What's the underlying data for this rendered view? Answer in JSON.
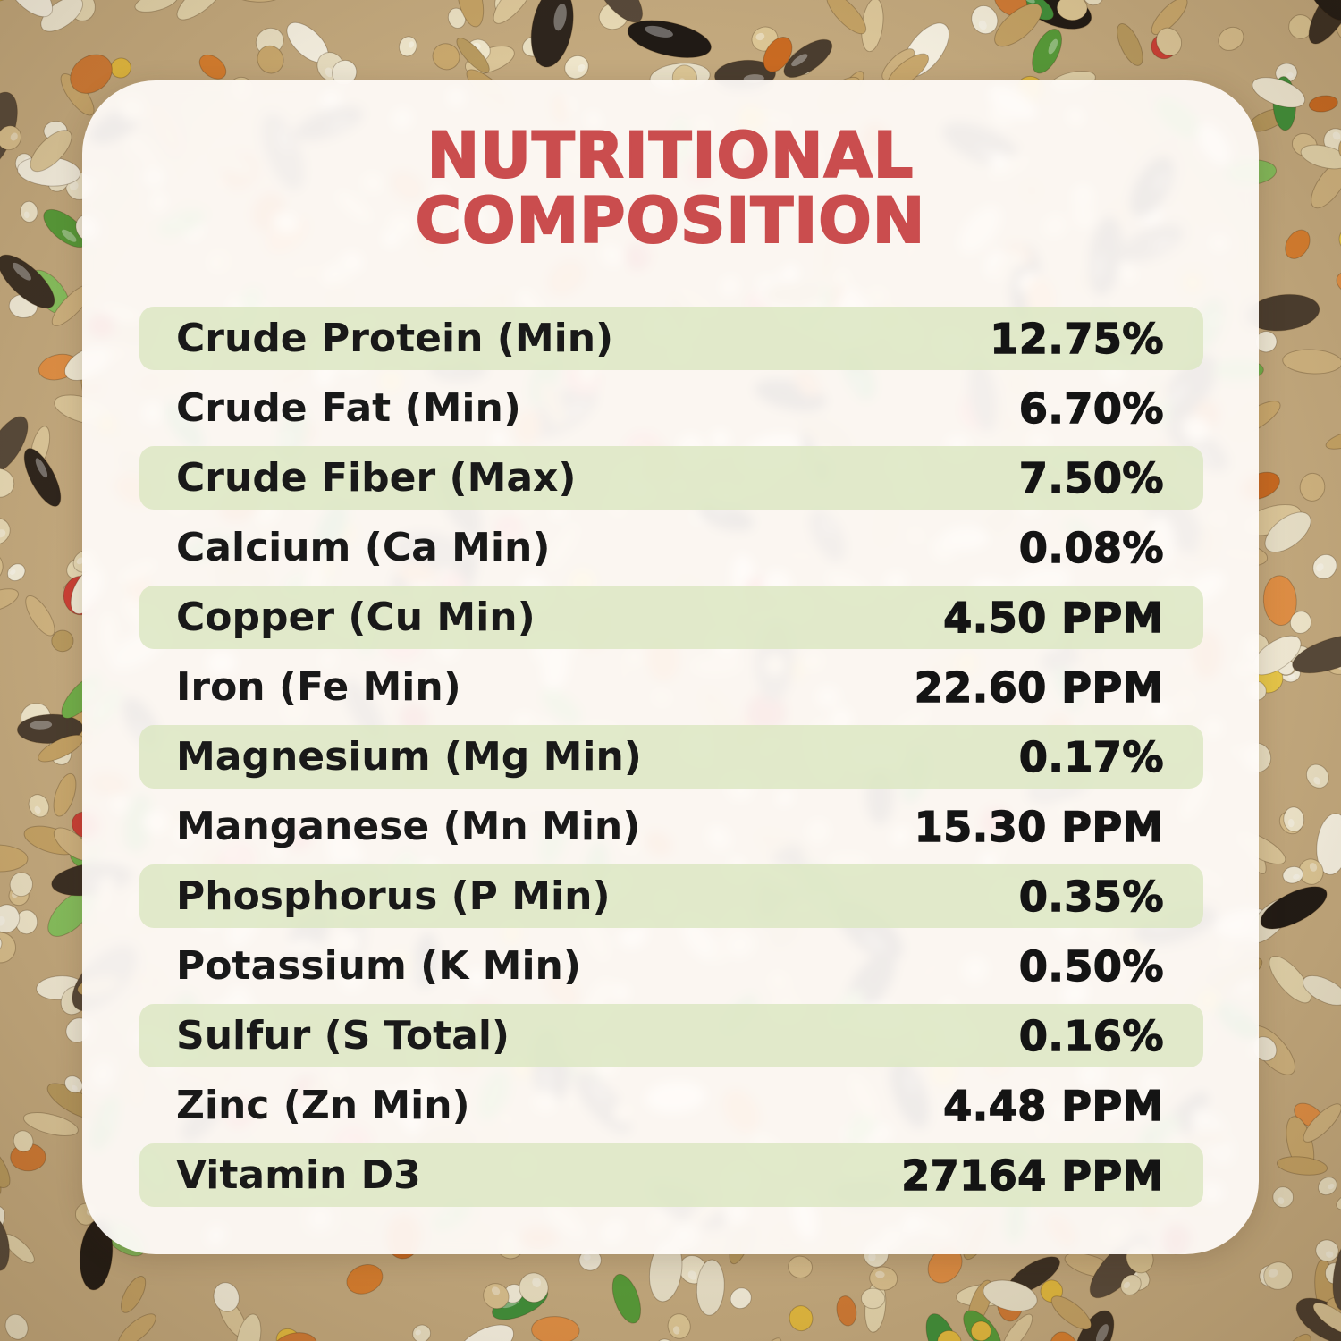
{
  "title": {
    "line1": "NUTRITIONAL",
    "line2": "COMPOSITION"
  },
  "colors": {
    "title_red": "#ca4d4e",
    "row_green": "#dce8c3",
    "card_white": "#fffcfa",
    "text_black": "#191919"
  },
  "table": {
    "rows": [
      {
        "label": "Crude Protein (Min)",
        "value": "12.75%"
      },
      {
        "label": "Crude Fat (Min)",
        "value": "6.70%"
      },
      {
        "label": "Crude Fiber (Max)",
        "value": "7.50%"
      },
      {
        "label": "Calcium (Ca Min)",
        "value": "0.08%"
      },
      {
        "label": "Copper (Cu Min)",
        "value": "4.50 PPM"
      },
      {
        "label": "Iron (Fe Min)",
        "value": "22.60 PPM"
      },
      {
        "label": "Magnesium (Mg Min)",
        "value": "0.17%"
      },
      {
        "label": "Manganese (Mn Min)",
        "value": "15.30 PPM"
      },
      {
        "label": "Phosphorus (P Min)",
        "value": "0.35%"
      },
      {
        "label": "Potassium (K Min)",
        "value": "0.50%"
      },
      {
        "label": "Sulfur (S Total)",
        "value": "0.16%"
      },
      {
        "label": "Zinc (Zn Min)",
        "value": "4.48 PPM"
      },
      {
        "label": "Vitamin D3",
        "value": "27164 PPM"
      }
    ]
  },
  "background": {
    "description": "photo of mixed bird seed forming a border around the card",
    "base_color": "#c3a97e",
    "palette": {
      "millet": [
        "#efe6cb",
        "#e7d9b4",
        "#dcc695",
        "#f2ecd9",
        "#d8bf8e",
        "#e9dfc2"
      ],
      "grain": [
        "#cfb380",
        "#c4a265",
        "#dcc79a",
        "#b89a5f",
        "#e3d4ac",
        "#caa96e"
      ],
      "sunflower": [
        "#2e251d",
        "#3a2f24",
        "#201a15",
        "#4a3d2f",
        "#57493a"
      ],
      "white_seed": [
        "#f1ead5",
        "#f6f1e2",
        "#e8e0c8"
      ],
      "green_pellet": [
        "#71b04a",
        "#569b39",
        "#86c05e",
        "#3f8f3a"
      ],
      "red_bits": [
        "#cc4036",
        "#d6554b",
        "#b53028",
        "#e0685f"
      ],
      "orange_bits": [
        "#d77e2f",
        "#c96a22",
        "#e08f45",
        "#cf7a35"
      ],
      "yellow_bits": [
        "#e2b93f",
        "#e8c84a"
      ]
    }
  }
}
